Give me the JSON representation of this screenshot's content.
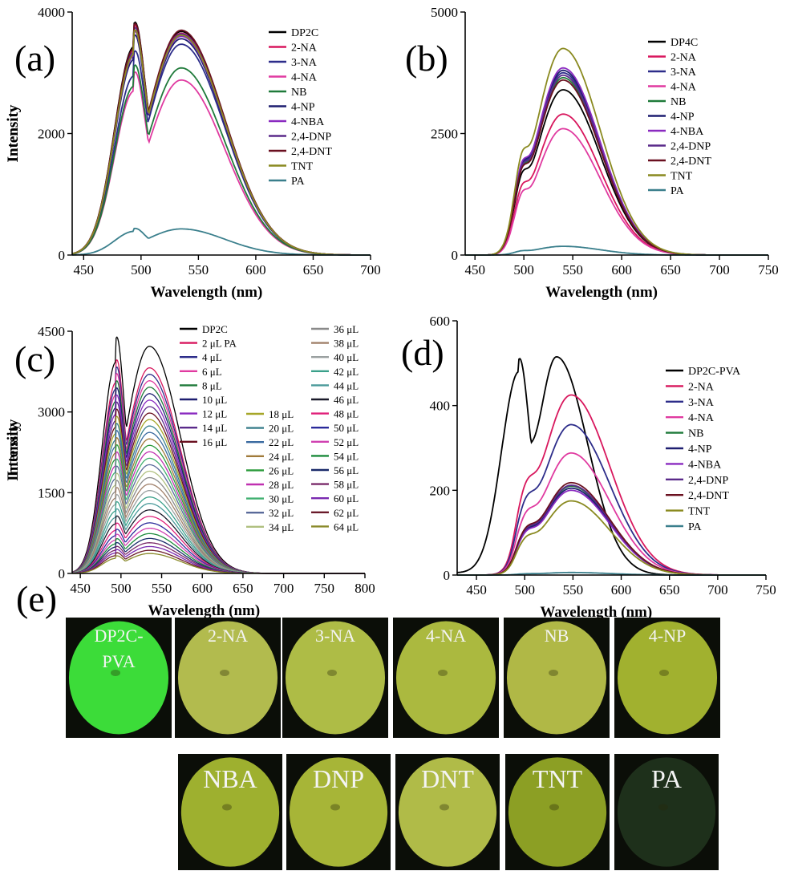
{
  "panel_e": {
    "letter": "(e)",
    "photos": [
      {
        "label": "DP2C-\nPVA",
        "color": "#3fe83c"
      },
      {
        "label": "2-NA",
        "color": "#bcc552"
      },
      {
        "label": "3-NA",
        "color": "#b7c64a"
      },
      {
        "label": "4-NA",
        "color": "#b4c342"
      },
      {
        "label": "NB",
        "color": "#b9c24a"
      },
      {
        "label": "4-NP",
        "color": "#aaba32"
      },
      {
        "label": "NBA",
        "color": "#a7b932"
      },
      {
        "label": "DNP",
        "color": "#b0bf3a"
      },
      {
        "label": "DNT",
        "color": "#b9c54c"
      },
      {
        "label": "TNT",
        "color": "#93a826"
      },
      {
        "label": "PA",
        "color": "#20331c"
      }
    ]
  },
  "chart_data": [
    {
      "id": "a",
      "letter": "(a)",
      "type": "line",
      "xlabel": "Wavelength (nm)",
      "ylabel": "Intensity",
      "xlim": [
        440,
        700
      ],
      "ylim": [
        0,
        4000
      ],
      "xticks": [
        450,
        500,
        550,
        600,
        650,
        700
      ],
      "yticks": [
        0,
        2000,
        4000
      ],
      "legend_position": "right",
      "series": [
        {
          "name": "DP2C",
          "color": "#000000",
          "peaks": [
            3430,
            3680
          ]
        },
        {
          "name": "2-NA",
          "color": "#d8175d",
          "peaks": [
            3380,
            3650
          ]
        },
        {
          "name": "3-NA",
          "color": "#2d2d8a",
          "peaks": [
            2950,
            3470
          ]
        },
        {
          "name": "4-NA",
          "color": "#e03aa0",
          "peaks": [
            2700,
            2880
          ]
        },
        {
          "name": "NB",
          "color": "#1f7a3a",
          "peaks": [
            2780,
            3080
          ]
        },
        {
          "name": "4-NP",
          "color": "#1e1e70",
          "peaks": [
            3220,
            3560
          ]
        },
        {
          "name": "4-NBA",
          "color": "#8a2ac0",
          "peaks": [
            3280,
            3600
          ]
        },
        {
          "name": "2,4-DNP",
          "color": "#5a2a8a",
          "peaks": [
            3340,
            3640
          ]
        },
        {
          "name": "2,4-DNT",
          "color": "#6a1020",
          "peaks": [
            3400,
            3700
          ]
        },
        {
          "name": "TNT",
          "color": "#8a8a20",
          "peaks": [
            3300,
            3620
          ]
        },
        {
          "name": "PA",
          "color": "#3a7f8c",
          "peaks": [
            390,
            430
          ]
        }
      ]
    },
    {
      "id": "b",
      "letter": "(b)",
      "type": "line",
      "xlabel": "Wavelength (nm)",
      "ylabel": "Intensity",
      "xlim": [
        440,
        750
      ],
      "ylim": [
        0,
        5000
      ],
      "xticks": [
        450,
        500,
        550,
        600,
        650,
        700,
        750
      ],
      "yticks": [
        0,
        2500,
        5000
      ],
      "legend_position": "right",
      "series": [
        {
          "name": "DP4C",
          "color": "#000000",
          "peak": 3400
        },
        {
          "name": "2-NA",
          "color": "#d8175d",
          "peak": 2900
        },
        {
          "name": "3-NA",
          "color": "#2d2d8a",
          "peak": 3750
        },
        {
          "name": "4-NA",
          "color": "#e03aa0",
          "peak": 2600
        },
        {
          "name": "NB",
          "color": "#1f7a3a",
          "peak": 3650
        },
        {
          "name": "4-NP",
          "color": "#1e1e70",
          "peak": 3800
        },
        {
          "name": "4-NBA",
          "color": "#8a2ac0",
          "peak": 3850
        },
        {
          "name": "2,4-DNP",
          "color": "#5a2a8a",
          "peak": 3700
        },
        {
          "name": "2,4-DNT",
          "color": "#6a1020",
          "peak": 3600
        },
        {
          "name": "TNT",
          "color": "#8a8a20",
          "peak": 4250
        },
        {
          "name": "PA",
          "color": "#3a7f8c",
          "peak": 180
        }
      ]
    },
    {
      "id": "c",
      "letter": "(c)",
      "type": "line",
      "xlabel": "Wavelength (nm)",
      "ylabel": "Intensity",
      "xlim": [
        440,
        800
      ],
      "ylim": [
        0,
        4500
      ],
      "xticks": [
        450,
        500,
        550,
        600,
        650,
        700,
        750,
        800
      ],
      "yticks": [
        0,
        1500,
        3000,
        4500
      ],
      "legend_position": "right",
      "series": [
        {
          "name": "DP2C",
          "color": "#000000",
          "peaks": [
            3930,
            4220
          ]
        },
        {
          "name": "2 μL PA",
          "color": "#d8175d",
          "peaks": [
            3550,
            3820
          ]
        },
        {
          "name": "4 μL",
          "color": "#2d2d8a",
          "peaks": [
            3430,
            3700
          ]
        },
        {
          "name": "6 μL",
          "color": "#e03aa0",
          "peaks": [
            3320,
            3580
          ]
        },
        {
          "name": "8 μL",
          "color": "#1f7a3a",
          "peaks": [
            3200,
            3460
          ]
        },
        {
          "name": "10 μL",
          "color": "#1e1e70",
          "peaks": [
            3080,
            3340
          ]
        },
        {
          "name": "12 μL",
          "color": "#8a2ac0",
          "peaks": [
            2960,
            3220
          ]
        },
        {
          "name": "14 μL",
          "color": "#5a2a8a",
          "peaks": [
            2840,
            3100
          ]
        },
        {
          "name": "16 μL",
          "color": "#6a1020",
          "peaks": [
            2720,
            2980
          ]
        },
        {
          "name": "18 μL",
          "color": "#a6a628",
          "peaks": [
            2600,
            2860
          ]
        },
        {
          "name": "20 μL",
          "color": "#3a7f8c",
          "peaks": [
            2480,
            2740
          ]
        },
        {
          "name": "22 μL",
          "color": "#3a6aa0",
          "peaks": [
            2360,
            2620
          ]
        },
        {
          "name": "24 μL",
          "color": "#a07a3a",
          "peaks": [
            2240,
            2500
          ]
        },
        {
          "name": "26 μL",
          "color": "#2a9a3a",
          "peaks": [
            2120,
            2380
          ]
        },
        {
          "name": "28 μL",
          "color": "#c030b0",
          "peaks": [
            2000,
            2260
          ]
        },
        {
          "name": "30 μL",
          "color": "#40b070",
          "peaks": [
            1880,
            2140
          ]
        },
        {
          "name": "32 μL",
          "color": "#5a6a9a",
          "peaks": [
            1760,
            2020
          ]
        },
        {
          "name": "34 μL",
          "color": "#b0c080",
          "peaks": [
            1640,
            1900
          ]
        },
        {
          "name": "36 μL",
          "color": "#8a8a8a",
          "peaks": [
            1520,
            1780
          ]
        },
        {
          "name": "38 μL",
          "color": "#a0806a",
          "peaks": [
            1400,
            1660
          ]
        },
        {
          "name": "40 μL",
          "color": "#9aa0a0",
          "peaks": [
            1280,
            1540
          ]
        },
        {
          "name": "42 μL",
          "color": "#3aa08a",
          "peaks": [
            1160,
            1420
          ]
        },
        {
          "name": "44 μL",
          "color": "#4a9a9a",
          "peaks": [
            1040,
            1300
          ]
        },
        {
          "name": "46 μL",
          "color": "#1a1a2a",
          "peaks": [
            920,
            1180
          ]
        },
        {
          "name": "48 μL",
          "color": "#e0207a",
          "peaks": [
            800,
            1060
          ]
        },
        {
          "name": "50 μL",
          "color": "#2a2a9a",
          "peaks": [
            700,
            940
          ]
        },
        {
          "name": "52 μL",
          "color": "#d040b0",
          "peaks": [
            620,
            840
          ]
        },
        {
          "name": "54 μL",
          "color": "#1a8a3a",
          "peaks": [
            550,
            740
          ]
        },
        {
          "name": "56 μL",
          "color": "#1a2a6a",
          "peaks": [
            490,
            650
          ]
        },
        {
          "name": "58 μL",
          "color": "#7a2a6a",
          "peaks": [
            430,
            570
          ]
        },
        {
          "name": "60 μL",
          "color": "#7a2ab0",
          "peaks": [
            380,
            500
          ]
        },
        {
          "name": "62 μL",
          "color": "#6a1a2a",
          "peaks": [
            330,
            430
          ]
        },
        {
          "name": "64 μL",
          "color": "#8a8a2a",
          "peaks": [
            280,
            370
          ]
        }
      ]
    },
    {
      "id": "d",
      "letter": "(d)",
      "type": "line",
      "xlabel": "Wavelength (nm)",
      "ylabel": "Intensity",
      "xlim": [
        430,
        750
      ],
      "ylim": [
        0,
        600
      ],
      "xticks": [
        450,
        500,
        550,
        600,
        650,
        700,
        750
      ],
      "yticks": [
        0,
        200,
        400,
        600
      ],
      "legend_position": "right",
      "series": [
        {
          "name": "DP2C-PVA",
          "color": "#000000",
          "peak": 515,
          "shoulder": 475
        },
        {
          "name": "2-NA",
          "color": "#d8175d",
          "peak": 425
        },
        {
          "name": "3-NA",
          "color": "#2d2d8a",
          "peak": 355
        },
        {
          "name": "4-NA",
          "color": "#e03aa0",
          "peak": 288
        },
        {
          "name": "NB",
          "color": "#1f7a3a",
          "peak": 210
        },
        {
          "name": "4-NP",
          "color": "#1e1e70",
          "peak": 205
        },
        {
          "name": "4-NBA",
          "color": "#8a2ac0",
          "peak": 200
        },
        {
          "name": "2,4-DNP",
          "color": "#5a2a8a",
          "peak": 212
        },
        {
          "name": "2,4-DNT",
          "color": "#6a1020",
          "peak": 218
        },
        {
          "name": "TNT",
          "color": "#8a8a20",
          "peak": 175
        },
        {
          "name": "PA",
          "color": "#3a7f8c",
          "peak": 6
        }
      ]
    }
  ]
}
